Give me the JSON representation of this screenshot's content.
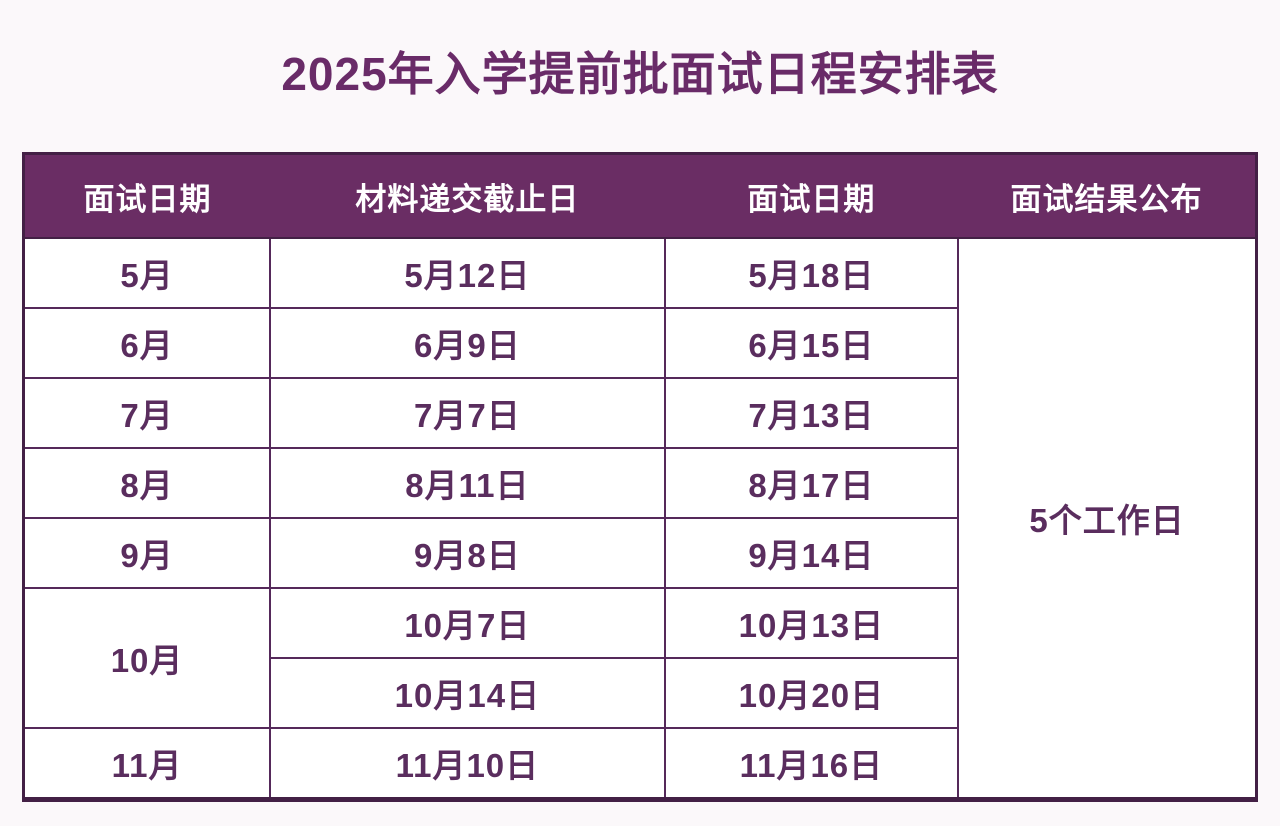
{
  "title": "2025年入学提前批面试日程安排表",
  "table": {
    "headers": [
      "面试日期",
      "材料递交截止日",
      "面试日期",
      "面试结果公布"
    ],
    "row_groups": [
      {
        "month": "5月",
        "entries": [
          {
            "deadline": "5月12日",
            "interview": "5月18日"
          }
        ]
      },
      {
        "month": "6月",
        "entries": [
          {
            "deadline": "6月9日",
            "interview": "6月15日"
          }
        ]
      },
      {
        "month": "7月",
        "entries": [
          {
            "deadline": "7月7日",
            "interview": "7月13日"
          }
        ]
      },
      {
        "month": "8月",
        "entries": [
          {
            "deadline": "8月11日",
            "interview": "8月17日"
          }
        ]
      },
      {
        "month": "9月",
        "entries": [
          {
            "deadline": "9月8日",
            "interview": "9月14日"
          }
        ]
      },
      {
        "month": "10月",
        "entries": [
          {
            "deadline": "10月7日",
            "interview": "10月13日"
          },
          {
            "deadline": "10月14日",
            "interview": "10月20日"
          }
        ]
      },
      {
        "month": "11月",
        "entries": [
          {
            "deadline": "11月10日",
            "interview": "11月16日"
          }
        ]
      }
    ],
    "result_span": "5个工作日"
  },
  "colors": {
    "header_bg": "#6A2D64",
    "header_text": "#FFFFFF",
    "cell_text": "#5A2D5E",
    "title_text": "#692B68",
    "border": "#55295A",
    "outer_border": "#432045",
    "page_bg": "#FBF8FA"
  }
}
